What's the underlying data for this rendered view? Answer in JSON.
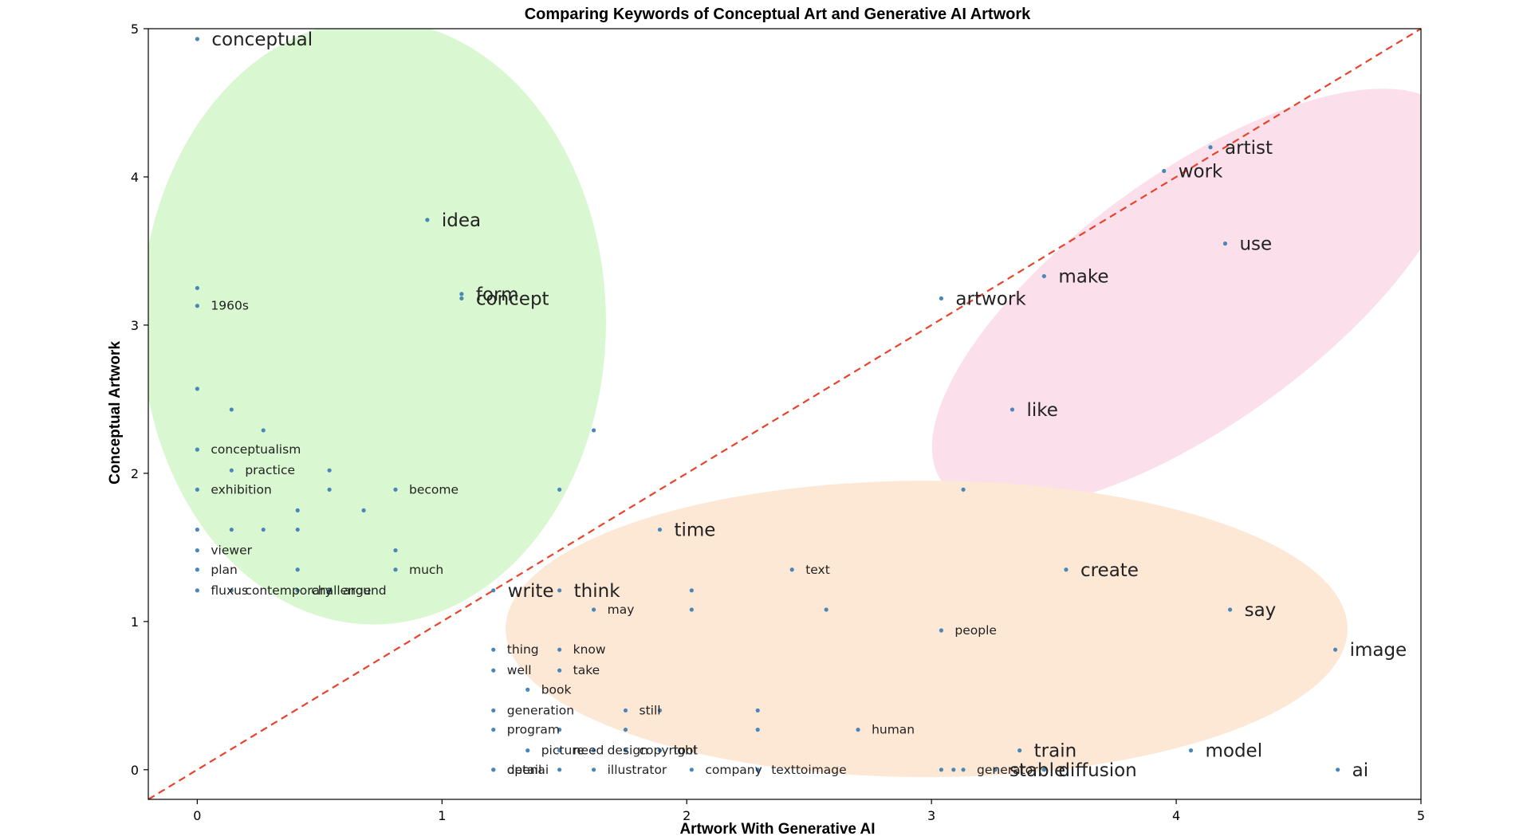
{
  "chart_data": {
    "type": "scatter",
    "title": "Comparing Keywords of Conceptual Art and Generative AI Artwork",
    "xlabel": "Artwork With Generative AI",
    "ylabel": "Conceptual Artwork",
    "xlim": [
      -0.2,
      5
    ],
    "ylim": [
      -0.2,
      5
    ],
    "xticks": [
      0,
      1,
      2,
      3,
      4,
      5
    ],
    "yticks": [
      0,
      1,
      2,
      3,
      4,
      5
    ],
    "grid": false,
    "reference_line": {
      "style": "dashed",
      "color": "#e8432d",
      "from": [
        -0.2,
        -0.2
      ],
      "to": [
        5,
        5
      ]
    },
    "point_color": "#4a86b8",
    "regions": [
      {
        "color": "#d9f7d0",
        "center": [
          0.72,
          3.02
        ],
        "rx": 0.95,
        "ry": 2.04
      },
      {
        "color": "#fbe0ec",
        "center": [
          4.08,
          3.18
        ],
        "rx": 1.28,
        "ry": 0.84,
        "rotation_deg": -36
      },
      {
        "color": "#fde8d6",
        "center": [
          2.98,
          0.95
        ],
        "rx": 1.72,
        "ry": 1.0
      }
    ],
    "points": [
      {
        "x": 0.0,
        "y": 4.93,
        "label": "conceptual",
        "size": "large"
      },
      {
        "x": 0.94,
        "y": 3.71,
        "label": "idea",
        "size": "large"
      },
      {
        "x": 1.08,
        "y": 3.21,
        "label": "form",
        "size": "large"
      },
      {
        "x": 1.08,
        "y": 3.18,
        "label": "concept",
        "size": "large"
      },
      {
        "x": 0.0,
        "y": 3.25,
        "label": ""
      },
      {
        "x": 0.0,
        "y": 3.13,
        "label": "1960s",
        "size": "small"
      },
      {
        "x": 0.0,
        "y": 2.57,
        "label": ""
      },
      {
        "x": 0.14,
        "y": 2.43,
        "label": ""
      },
      {
        "x": 0.27,
        "y": 2.29,
        "label": ""
      },
      {
        "x": 1.62,
        "y": 2.29,
        "label": ""
      },
      {
        "x": 0.0,
        "y": 2.16,
        "label": "conceptualism",
        "size": "small"
      },
      {
        "x": 0.14,
        "y": 2.02,
        "label": "practice",
        "size": "small"
      },
      {
        "x": 0.54,
        "y": 2.02,
        "label": ""
      },
      {
        "x": 0.0,
        "y": 1.89,
        "label": "exhibition",
        "size": "small"
      },
      {
        "x": 0.54,
        "y": 1.89,
        "label": ""
      },
      {
        "x": 0.81,
        "y": 1.89,
        "label": "become",
        "size": "small"
      },
      {
        "x": 1.48,
        "y": 1.89,
        "label": ""
      },
      {
        "x": 0.41,
        "y": 1.75,
        "label": ""
      },
      {
        "x": 0.68,
        "y": 1.75,
        "label": ""
      },
      {
        "x": 0.0,
        "y": 1.62,
        "label": ""
      },
      {
        "x": 0.14,
        "y": 1.62,
        "label": ""
      },
      {
        "x": 0.27,
        "y": 1.62,
        "label": ""
      },
      {
        "x": 0.41,
        "y": 1.62,
        "label": ""
      },
      {
        "x": 0.0,
        "y": 1.48,
        "label": "viewer",
        "size": "small"
      },
      {
        "x": 0.81,
        "y": 1.48,
        "label": ""
      },
      {
        "x": 0.0,
        "y": 1.35,
        "label": "plan",
        "size": "small"
      },
      {
        "x": 0.41,
        "y": 1.35,
        "label": ""
      },
      {
        "x": 0.81,
        "y": 1.35,
        "label": "much",
        "size": "small"
      },
      {
        "x": 0.0,
        "y": 1.21,
        "label": "fluxus",
        "size": "small"
      },
      {
        "x": 0.14,
        "y": 1.21,
        "label": "contemporary",
        "size": "small"
      },
      {
        "x": 0.41,
        "y": 1.21,
        "label": "challenge",
        "size": "small"
      },
      {
        "x": 0.54,
        "y": 1.21,
        "label": "around",
        "size": "small"
      },
      {
        "x": 4.14,
        "y": 4.2,
        "label": "artist",
        "size": "large"
      },
      {
        "x": 3.95,
        "y": 4.04,
        "label": "work",
        "size": "large"
      },
      {
        "x": 4.2,
        "y": 3.55,
        "label": "use",
        "size": "large"
      },
      {
        "x": 3.46,
        "y": 3.33,
        "label": "make",
        "size": "large"
      },
      {
        "x": 3.04,
        "y": 3.18,
        "label": "artwork",
        "size": "large"
      },
      {
        "x": 3.33,
        "y": 2.43,
        "label": "like",
        "size": "large"
      },
      {
        "x": 3.13,
        "y": 1.89,
        "label": ""
      },
      {
        "x": 1.89,
        "y": 1.62,
        "label": "time",
        "size": "large"
      },
      {
        "x": 2.43,
        "y": 1.35,
        "label": "text",
        "size": "small"
      },
      {
        "x": 3.55,
        "y": 1.35,
        "label": "create",
        "size": "large"
      },
      {
        "x": 1.21,
        "y": 1.21,
        "label": "write",
        "size": "large"
      },
      {
        "x": 1.48,
        "y": 1.21,
        "label": "think",
        "size": "large"
      },
      {
        "x": 2.02,
        "y": 1.21,
        "label": ""
      },
      {
        "x": 1.62,
        "y": 1.08,
        "label": "may",
        "size": "small"
      },
      {
        "x": 2.02,
        "y": 1.08,
        "label": ""
      },
      {
        "x": 2.57,
        "y": 1.08,
        "label": ""
      },
      {
        "x": 4.22,
        "y": 1.08,
        "label": "say",
        "size": "large"
      },
      {
        "x": 3.04,
        "y": 0.94,
        "label": "people",
        "size": "small"
      },
      {
        "x": 4.65,
        "y": 0.81,
        "label": "image",
        "size": "large"
      },
      {
        "x": 1.21,
        "y": 0.81,
        "label": "thing",
        "size": "small"
      },
      {
        "x": 1.48,
        "y": 0.81,
        "label": "know",
        "size": "small"
      },
      {
        "x": 1.21,
        "y": 0.67,
        "label": "well",
        "size": "small"
      },
      {
        "x": 1.48,
        "y": 0.67,
        "label": "take",
        "size": "small"
      },
      {
        "x": 1.35,
        "y": 0.54,
        "label": "book",
        "size": "small"
      },
      {
        "x": 1.21,
        "y": 0.4,
        "label": "generation",
        "size": "small"
      },
      {
        "x": 1.75,
        "y": 0.4,
        "label": "still",
        "size": "small"
      },
      {
        "x": 1.89,
        "y": 0.4,
        "label": ""
      },
      {
        "x": 2.29,
        "y": 0.4,
        "label": ""
      },
      {
        "x": 1.21,
        "y": 0.27,
        "label": "program",
        "size": "small"
      },
      {
        "x": 1.48,
        "y": 0.27,
        "label": ""
      },
      {
        "x": 1.75,
        "y": 0.27,
        "label": ""
      },
      {
        "x": 2.29,
        "y": 0.27,
        "label": ""
      },
      {
        "x": 2.7,
        "y": 0.27,
        "label": "human",
        "size": "small"
      },
      {
        "x": 1.35,
        "y": 0.13,
        "label": "picture",
        "size": "small"
      },
      {
        "x": 1.48,
        "y": 0.13,
        "label": "need",
        "size": "small"
      },
      {
        "x": 1.62,
        "y": 0.13,
        "label": "design",
        "size": "small"
      },
      {
        "x": 1.75,
        "y": 0.13,
        "label": "copyright",
        "size": "small"
      },
      {
        "x": 1.89,
        "y": 0.13,
        "label": "tool",
        "size": "small"
      },
      {
        "x": 3.36,
        "y": 0.13,
        "label": "train",
        "size": "large"
      },
      {
        "x": 4.06,
        "y": 0.13,
        "label": "model",
        "size": "large"
      },
      {
        "x": 1.21,
        "y": 0.0,
        "label": "detail",
        "size": "small"
      },
      {
        "x": 1.21,
        "y": 0.0,
        "label": "openai",
        "size": "small"
      },
      {
        "x": 1.48,
        "y": 0.0,
        "label": ""
      },
      {
        "x": 1.62,
        "y": 0.0,
        "label": "illustrator",
        "size": "small"
      },
      {
        "x": 2.02,
        "y": 0.0,
        "label": "company",
        "size": "small"
      },
      {
        "x": 2.29,
        "y": 0.0,
        "label": "texttoimage",
        "size": "small"
      },
      {
        "x": 3.04,
        "y": 0.0,
        "label": ""
      },
      {
        "x": 3.09,
        "y": 0.0,
        "label": ""
      },
      {
        "x": 3.13,
        "y": 0.0,
        "label": "generator",
        "size": "small"
      },
      {
        "x": 3.26,
        "y": 0.0,
        "label": "stable",
        "size": "large"
      },
      {
        "x": 3.46,
        "y": 0.0,
        "label": "diffusion",
        "size": "large"
      },
      {
        "x": 4.66,
        "y": 0.0,
        "label": "ai",
        "size": "large"
      }
    ]
  }
}
